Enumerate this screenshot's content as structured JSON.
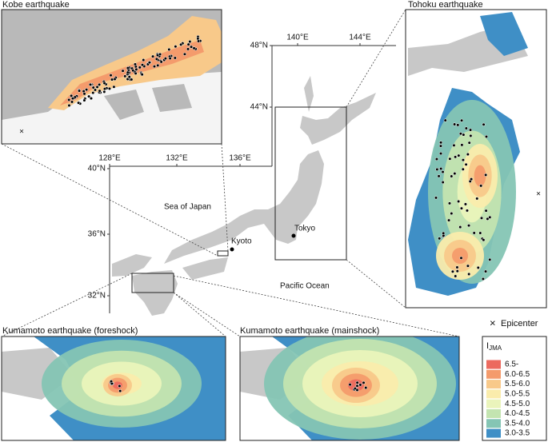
{
  "panels": {
    "kobe": "Kobe earthquake",
    "tohoku": "Tohoku earthquake",
    "foreshock": "Kumamoto earthquake (foreshock)",
    "mainshock": "Kumamoto earthquake (mainshock)"
  },
  "map": {
    "lon_labels": [
      "128°E",
      "132°E",
      "136°E",
      "140°E",
      "144°E"
    ],
    "lat_labels": [
      "48°N",
      "44°N",
      "40°N",
      "36°N",
      "32°N"
    ],
    "sea_of_japan": "Sea of Japan",
    "pacific_ocean": "Pacific Ocean",
    "tokyo": "Tokyo",
    "kyoto": "Kyoto"
  },
  "legend": {
    "epicenter_symbol": "×",
    "epicenter": "Epicenter",
    "title": "I",
    "title_subscript": "JMA",
    "items": [
      {
        "label": "6.5-",
        "color": "#ec6a5f"
      },
      {
        "label": "6.0-6.5",
        "color": "#f49b6c"
      },
      {
        "label": "5.5-6.0",
        "color": "#f8c98a"
      },
      {
        "label": "5.0-5.5",
        "color": "#faecac"
      },
      {
        "label": "4.5-5.0",
        "color": "#eaf4bb"
      },
      {
        "label": "4.0-4.5",
        "color": "#c3e4b0"
      },
      {
        "label": "3.5-4.0",
        "color": "#85c5b4"
      },
      {
        "label": "3.0-3.5",
        "color": "#3f8fc6"
      }
    ]
  }
}
